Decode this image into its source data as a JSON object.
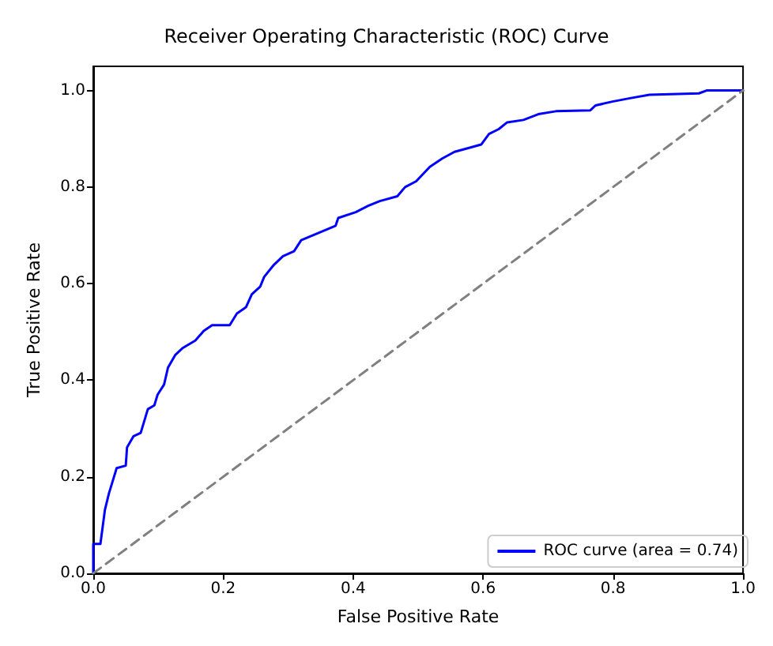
{
  "chart_data": {
    "type": "line",
    "title": "Receiver Operating Characteristic (ROC) Curve",
    "xlabel": "False Positive Rate",
    "ylabel": "True Positive Rate",
    "xlim": [
      0,
      1
    ],
    "ylim": [
      0,
      1.05
    ],
    "xticks": [
      {
        "value": 0,
        "label": "0.0"
      },
      {
        "value": 0.2,
        "label": "0.2"
      },
      {
        "value": 0.4,
        "label": "0.4"
      },
      {
        "value": 0.6,
        "label": "0.6"
      },
      {
        "value": 0.8,
        "label": "0.8"
      },
      {
        "value": 1,
        "label": "1.0"
      }
    ],
    "yticks": [
      {
        "value": 0,
        "label": "0.0"
      },
      {
        "value": 0.2,
        "label": "0.2"
      },
      {
        "value": 0.4,
        "label": "0.4"
      },
      {
        "value": 0.6,
        "label": "0.6"
      },
      {
        "value": 0.8,
        "label": "0.8"
      },
      {
        "value": 1,
        "label": "1.0"
      }
    ],
    "grid": false,
    "legend": "bottom right",
    "marker": "none",
    "series": [
      {
        "name": "ROC curve (area = 0.74)",
        "color": "#0000ff",
        "line_style": "solid",
        "x": [
          0,
          0,
          0.011,
          0.018,
          0.024,
          0.036,
          0.05,
          0.052,
          0.062,
          0.073,
          0.084,
          0.094,
          0.099,
          0.109,
          0.115,
          0.126,
          0.138,
          0.157,
          0.17,
          0.183,
          0.21,
          0.221,
          0.235,
          0.244,
          0.257,
          0.263,
          0.278,
          0.292,
          0.309,
          0.32,
          0.373,
          0.377,
          0.404,
          0.423,
          0.441,
          0.468,
          0.48,
          0.497,
          0.518,
          0.537,
          0.556,
          0.575,
          0.597,
          0.609,
          0.624,
          0.637,
          0.662,
          0.685,
          0.712,
          0.765,
          0.773,
          0.799,
          0.826,
          0.856,
          0.932,
          0.944,
          1
        ],
        "values": [
          0,
          0.061,
          0.061,
          0.132,
          0.165,
          0.218,
          0.223,
          0.261,
          0.284,
          0.291,
          0.34,
          0.348,
          0.37,
          0.391,
          0.426,
          0.452,
          0.467,
          0.482,
          0.502,
          0.514,
          0.514,
          0.538,
          0.551,
          0.578,
          0.594,
          0.614,
          0.639,
          0.657,
          0.667,
          0.69,
          0.72,
          0.736,
          0.748,
          0.761,
          0.771,
          0.781,
          0.8,
          0.812,
          0.842,
          0.859,
          0.873,
          0.88,
          0.888,
          0.91,
          0.92,
          0.934,
          0.939,
          0.951,
          0.957,
          0.959,
          0.969,
          0.977,
          0.984,
          0.991,
          0.994,
          1,
          1
        ]
      },
      {
        "color": "#808080",
        "line_style": "dashed",
        "x": [
          0,
          1
        ],
        "values": [
          0,
          1
        ]
      }
    ]
  }
}
